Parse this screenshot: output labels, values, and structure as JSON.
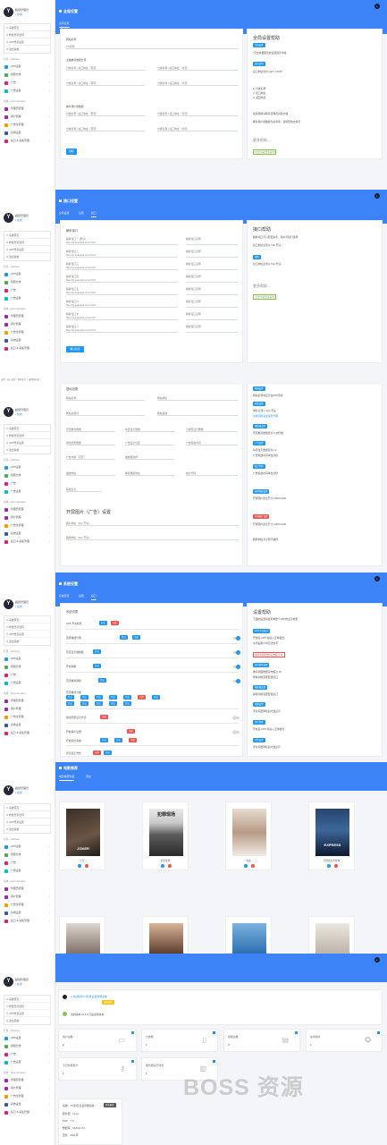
{
  "common": {
    "avatar_letter": "Y",
    "user_name": "超级管理员",
    "user_role": "• 在线",
    "user_icon": "user-icon",
    "quick_links": [
      "系统首页",
      "修改登录密码",
      "APP登录设置",
      "退出系统"
    ],
    "section_app": "扩展 · AdPlugs",
    "section_admin": "系统 · Administration",
    "nav_app": [
      "APP设置",
      "视频分类",
      "广告",
      "广告设置"
    ],
    "nav_admin": [
      "管理员管理",
      "用户管理",
      "广告位管理",
      "系统设置",
      "接口 & 采集管理"
    ],
    "accent": "#2196f3",
    "header_blue": "#3b83f6"
  },
  "s1": {
    "title": "全局设置",
    "tabs": [
      "全局设置"
    ],
    "f1_label": "网站名称",
    "f1_value": "YC影视",
    "g1": "主播推荐数据分组",
    "g2": "播放器资源组",
    "g3": "推荐用户赞数据",
    "pair_left": "分类名称 / 接口地址（首页）",
    "pair_right": "分类名称 / 接口地址（分页）",
    "save": "保存",
    "help_title": "全局设置帮助",
    "help_badge": "全局设置",
    "help_line1": "*平台将根据您的设置展示内容",
    "help_badge2": "接口说明",
    "help_line2": "接口地址支持 GET / POST",
    "help_lines": [
      "1. 分类名称",
      "2. 接口地址",
      "3. 返回格式"
    ],
    "help_line3": "如需帮助请联系管理员获取文档",
    "help_line4": "推荐用户赞数据为必填项，请按照格式填写",
    "more": "更多帮助...",
    "more_btn": "点击查看更多说明"
  },
  "s2": {
    "title": "接口设置",
    "tabs": [
      "全局设置",
      "设置",
      "接口"
    ],
    "card_title": "解析接口",
    "rows": [
      "解析接口一 (默认)",
      "解析接口二",
      "解析接口三",
      "解析接口四",
      "解析接口五",
      "解析接口六",
      "解析接口七",
      "解析接口八"
    ],
    "url_sample": "http://jx.example.com/?url=",
    "right_label": "解析接口名称",
    "save": "确认提交",
    "help_title": "接口帮助",
    "help_line1": "解析接口可以配置多条，用户可自行选择",
    "help_line2": "接口地址必须以 http 开头",
    "help_line3": "规则",
    "more": "更多帮助...",
    "more_btn": "点击查看更多说明",
    "crumb": "设置 > 接口设置 > 解析接口 > 编辑解析接口"
  },
  "s3": {
    "card_title": "基础设置",
    "fields": [
      "网站名称",
      "网站域名",
      "网站关键词",
      "网站描述",
      "首页推荐数量",
      "每页显示数量",
      "分类页显示数量",
      "搜索结果数量",
      "广告显示位置",
      "广告投放时间",
      "广告内容（页首）",
      "播放器选择",
      "播放地址",
      "推荐数据地址",
      "统计代码",
      "版权信息"
    ],
    "section2": "开屏图片（广告）设置",
    "sub1": "图片地址（http 开头）",
    "sub2": "跳转地址（http 开头）",
    "help_badges": [
      "基础设置",
      "网站设置",
      "播放器设置",
      "广告设置",
      "统计代码",
      "推荐数据设置",
      "开屏图片设置"
    ],
    "help_lines": [
      "网站名称将显示在APP顶部",
      "域名必须以 http 开头",
      "关键词用英文逗号分隔",
      "首页推荐数量建议 6 的倍数",
      "每页显示数量建议 12",
      "广告投放时间单位为秒",
      "开屏图片建议尺寸 1080×1920",
      "跳转地址为空则不跳转"
    ]
  },
  "s4": {
    "title": "系统设置",
    "tabs": [
      "系统首页",
      "设置",
      "接口"
    ],
    "card_title": "系统设置",
    "rows": [
      "APP 开关模式",
      "选择播放引擎",
      "首页显示播放器",
      "开启弹幕",
      "首页推荐视频",
      "首页推荐分类",
      "搜索结果显示方式",
      "开启用户注册",
      "开启积分系统",
      "开启评论",
      "首页广告显示方式",
      "评论显示方式"
    ],
    "chip_on": "开启",
    "chip_off": "关闭",
    "help_title": "设置帮助",
    "help_line1": "下面的设置将会影响整个APP的显示效果",
    "help_badges": [
      "APP 开关模式",
      "首页推荐设置",
      "播放器设置",
      "弹幕设置",
      "用户设置",
      "评论设置"
    ],
    "help_lines": [
      "开启后 APP 将进入正常模式",
      "关闭后用户将无法访问",
      "推荐视频数量请勿超过 30",
      "弹幕功能需要配置接口",
      "评论需要审核后才会显示"
    ]
  },
  "s5": {
    "title": "电影推荐",
    "tabs": [
      "电影推荐列表",
      "添加"
    ],
    "movies": [
      "小丑",
      "犯罪现场",
      "青春",
      "沉默的东方快车"
    ],
    "poster_text": [
      "JOKER",
      "犯罪现场",
      "",
      "EXPRESS"
    ]
  },
  "s6": {
    "msg1": "● 欢迎使用YC影视 后台管理系统",
    "msg1_tag": "系统通知",
    "msg2": "当前版本 v2.0.0 已是最新版本",
    "stats": [
      {
        "label": "用户总数",
        "value": "2"
      },
      {
        "label": "分类数",
        "value": "1"
      },
      {
        "label": "视频总数",
        "value": "3"
      },
      {
        "label": "在线用户",
        "value": "1"
      },
      {
        "label": "今日新增用户",
        "value": "1"
      },
      {
        "label": "服务器运行时长",
        "value": "1"
      }
    ],
    "sys_lines": [
      "系统：YC影视 后台管理系统",
      "服务器：Linux",
      "PHP：7.3",
      "数据库：MySQL 5.6",
      "更新：2021年"
    ],
    "sys_btn": "检查更新"
  },
  "watermark": "BOSS 资源"
}
